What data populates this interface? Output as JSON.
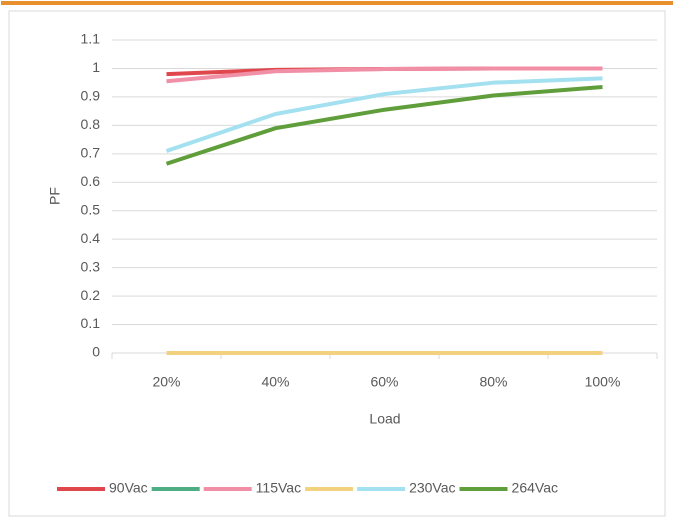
{
  "chart_data": {
    "type": "line",
    "categories": [
      "20%",
      "40%",
      "60%",
      "80%",
      "100%"
    ],
    "series": [
      {
        "name": "90Vac",
        "color": "#e0474c",
        "values": [
          0.98,
          0.995,
          0.998,
          1,
          1
        ]
      },
      {
        "name": null,
        "color": "#4eae83",
        "values": [
          0,
          0,
          0,
          0,
          0
        ]
      },
      {
        "name": "115Vac",
        "color": "#f08fa6",
        "values": [
          0.955,
          0.99,
          0.998,
          1,
          1
        ]
      },
      {
        "name": null,
        "color": "#f2d27e",
        "values": [
          0,
          0,
          0,
          0,
          0
        ]
      },
      {
        "name": "230Vac",
        "color": "#a3e0f0",
        "values": [
          0.71,
          0.84,
          0.91,
          0.95,
          0.965
        ]
      },
      {
        "name": "264Vac",
        "color": "#5f9e3a",
        "values": [
          0.665,
          0.79,
          0.855,
          0.905,
          0.935
        ]
      }
    ],
    "x_label": "Load",
    "y_label": "PF",
    "ylim": [
      0,
      1.1
    ],
    "yticks": [
      0,
      0.1,
      0.2,
      0.3,
      0.4,
      0.5,
      0.6,
      0.7,
      0.8,
      0.9,
      1,
      1.1
    ],
    "grid": true,
    "legend": "bottom"
  }
}
